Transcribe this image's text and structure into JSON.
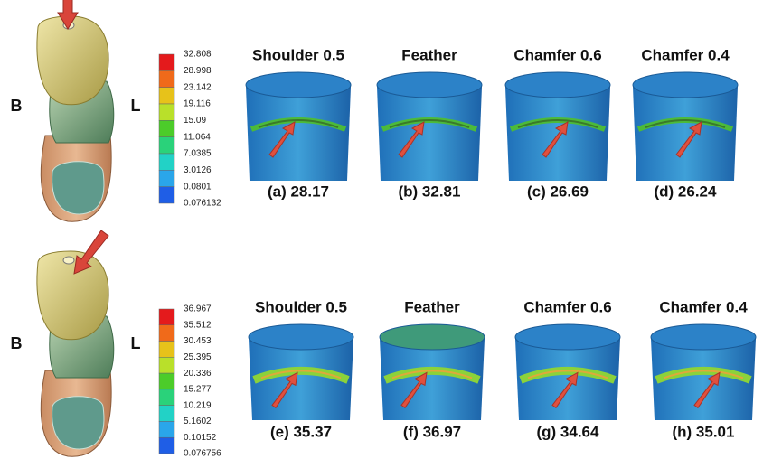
{
  "rows": [
    {
      "left_label": "B",
      "right_label": "L",
      "legend": [
        "32.808",
        "28.998",
        "23.142",
        "19.116",
        "15.09",
        "11.064",
        "7.0385",
        "3.0126",
        "0.0801",
        "0.076132"
      ],
      "columns": [
        "Shoulder 0.5",
        "Feather",
        "Chamfer 0.6",
        "Chamfer 0.4"
      ],
      "captions": [
        "(a) 28.17",
        "(b) 32.81",
        "(c) 26.69",
        "(d) 26.24"
      ]
    },
    {
      "left_label": "B",
      "right_label": "L",
      "legend": [
        "36.967",
        "35.512",
        "30.453",
        "25.395",
        "20.336",
        "15.277",
        "10.219",
        "5.1602",
        "0.10152",
        "0.076756"
      ],
      "columns": [
        "Shoulder 0.5",
        "Feather",
        "Chamfer 0.6",
        "Chamfer 0.4"
      ],
      "captions": [
        "(e) 35.37",
        "(f) 36.97",
        "(g) 34.64",
        "(h) 35.01"
      ]
    }
  ]
}
